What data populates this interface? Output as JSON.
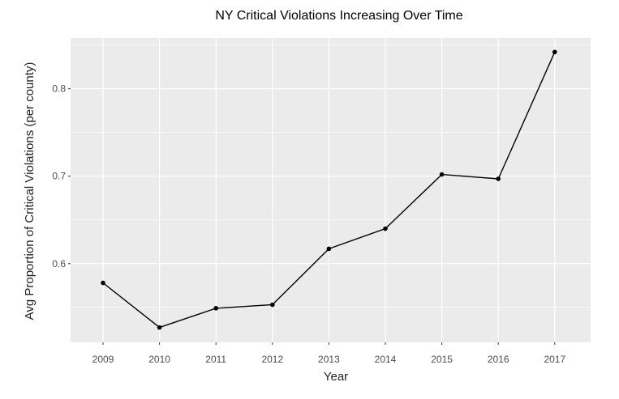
{
  "chart_data": {
    "type": "line",
    "title": "NY Critical Violations Increasing Over Time",
    "xlabel": "Year",
    "ylabel": "Avg Proportion of Critical Violations (per county)",
    "x": [
      "2009",
      "2010",
      "2011",
      "2012",
      "2013",
      "2014",
      "2015",
      "2016",
      "2017"
    ],
    "series": [
      {
        "values": [
          0.578,
          0.527,
          0.549,
          0.553,
          0.617,
          0.64,
          0.702,
          0.697,
          0.842
        ]
      }
    ],
    "y_ticks": [
      "0.6",
      "0.7",
      "0.8"
    ],
    "ylim": [
      0.51,
      0.858
    ],
    "grid": true,
    "legend": "none",
    "colors": {
      "panel": "#ebebeb",
      "grid": "#ffffff",
      "line": "#000000",
      "point": "#000000",
      "text": "#4d4d4d",
      "title": "#000000"
    }
  }
}
